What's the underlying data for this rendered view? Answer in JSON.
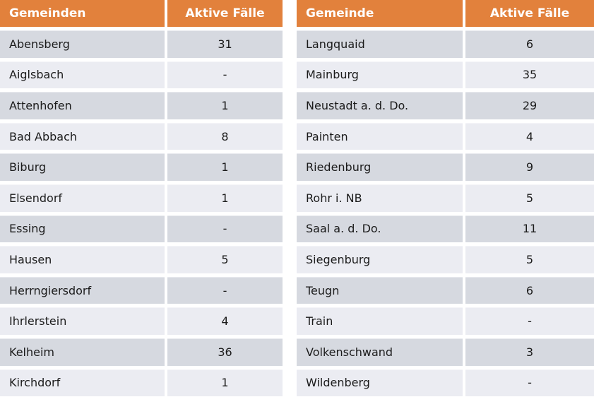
{
  "colors": {
    "header_bg": "#E2813C",
    "header_text": "#FFFFFF",
    "row_dark": "#D6D9E0",
    "row_light": "#EBECF2",
    "body_text": "#1B1B1B",
    "background": "#FFFFFF"
  },
  "chart_data": {
    "type": "table",
    "tables": [
      {
        "headers": [
          "Gemeinden",
          "Aktive Fälle"
        ],
        "rows": [
          [
            "Abensberg",
            "31"
          ],
          [
            "Aiglsbach",
            "-"
          ],
          [
            "Attenhofen",
            "1"
          ],
          [
            "Bad Abbach",
            "8"
          ],
          [
            "Biburg",
            "1"
          ],
          [
            "Elsendorf",
            "1"
          ],
          [
            "Essing",
            "-"
          ],
          [
            "Hausen",
            "5"
          ],
          [
            "Herrngiersdorf",
            "-"
          ],
          [
            "Ihrlerstein",
            "4"
          ],
          [
            "Kelheim",
            "36"
          ],
          [
            "Kirchdorf",
            "1"
          ]
        ]
      },
      {
        "headers": [
          "Gemeinde",
          "Aktive Fälle"
        ],
        "rows": [
          [
            "Langquaid",
            "6"
          ],
          [
            "Mainburg",
            "35"
          ],
          [
            "Neustadt a. d. Do.",
            "29"
          ],
          [
            "Painten",
            "4"
          ],
          [
            "Riedenburg",
            "9"
          ],
          [
            "Rohr i. NB",
            "5"
          ],
          [
            "Saal a. d. Do.",
            "11"
          ],
          [
            "Siegenburg",
            "5"
          ],
          [
            "Teugn",
            "6"
          ],
          [
            "Train",
            "-"
          ],
          [
            "Volkenschwand",
            "3"
          ],
          [
            "Wildenberg",
            "-"
          ]
        ]
      }
    ]
  }
}
